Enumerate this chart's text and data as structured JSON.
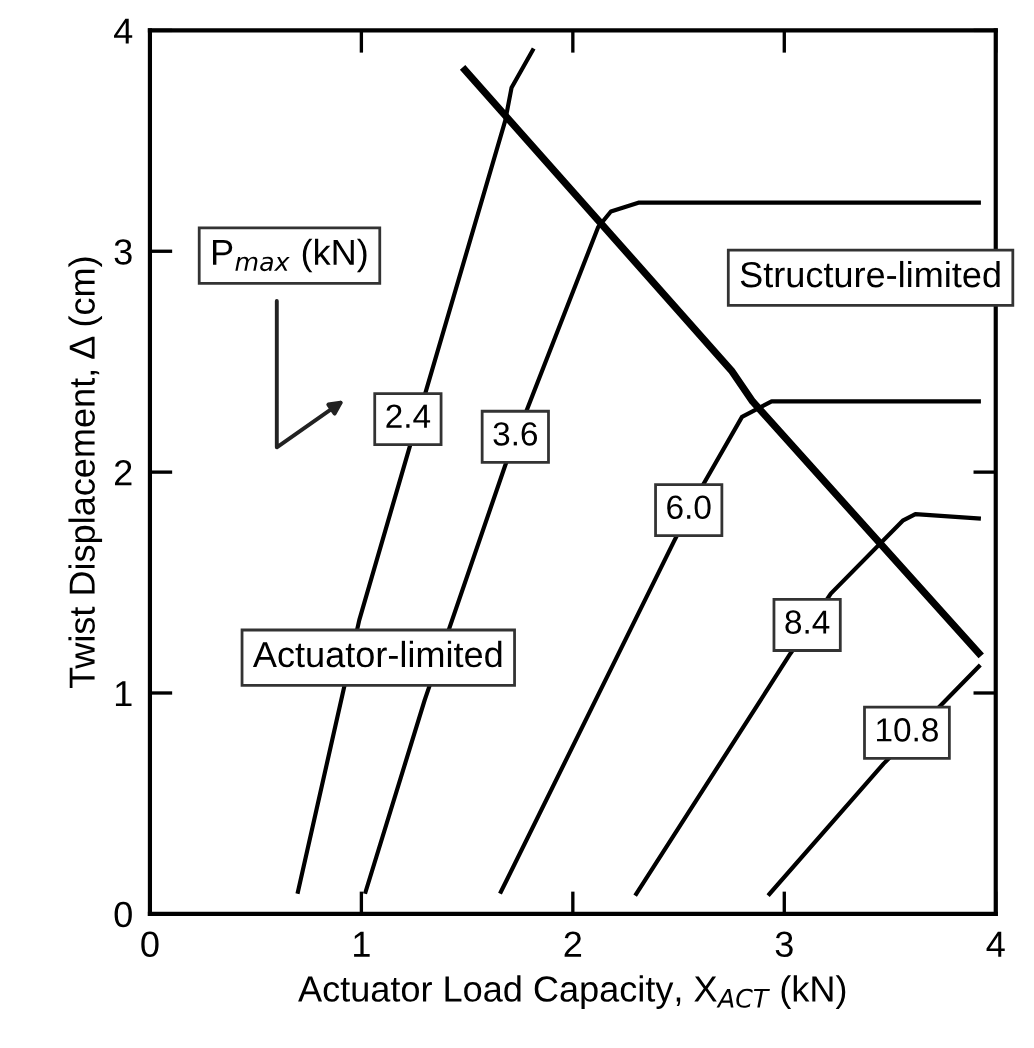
{
  "chart_data": {
    "type": "line",
    "xlabel": "Actuator Load Capacity, X$_{ACT}$ (kN)",
    "ylabel": "Twist Displacement, Δ (cm)",
    "xlim": [
      0,
      4
    ],
    "ylim": [
      0,
      4
    ],
    "xticks": [
      0,
      1,
      2,
      3,
      4
    ],
    "yticks": [
      0,
      1,
      2,
      3,
      4
    ],
    "grid": false,
    "legend": false,
    "marker": "none",
    "line_style": "solid",
    "series": [
      {
        "name": "2.4",
        "color": "#000000",
        "x": [
          0.7,
          0.99,
          1.3,
          1.68,
          1.71,
          1.81
        ],
        "values": [
          0.1,
          1.33,
          2.35,
          3.59,
          3.74,
          3.91
        ]
      },
      {
        "name": "3.6",
        "color": "#000000",
        "x": [
          1.02,
          1.3,
          1.68,
          2.12,
          2.18,
          2.31,
          3.92
        ],
        "values": [
          0.1,
          0.97,
          2.03,
          3.11,
          3.18,
          3.22,
          3.22
        ]
      },
      {
        "name": "6.0",
        "color": "#000000",
        "x": [
          1.66,
          2.48,
          2.62,
          2.8,
          2.94,
          3.92
        ],
        "values": [
          0.1,
          1.69,
          1.95,
          2.25,
          2.32,
          2.32
        ]
      },
      {
        "name": "8.4",
        "color": "#000000",
        "x": [
          2.3,
          3.03,
          3.22,
          3.56,
          3.62,
          3.92
        ],
        "values": [
          0.09,
          1.18,
          1.45,
          1.78,
          1.81,
          1.79
        ]
      },
      {
        "name": "10.8",
        "color": "#000000",
        "x": [
          2.93,
          3.47,
          3.92
        ],
        "values": [
          0.09,
          0.68,
          1.12
        ]
      },
      {
        "color": "#000000",
        "x": [
          1.49,
          2.75,
          2.85,
          3.92
        ],
        "values": [
          3.82,
          2.46,
          2.32,
          1.18
        ]
      }
    ],
    "annotations": [
      "P$_{max}$ (kN)",
      "Actuator-limited",
      "Structure-limited"
    ]
  }
}
